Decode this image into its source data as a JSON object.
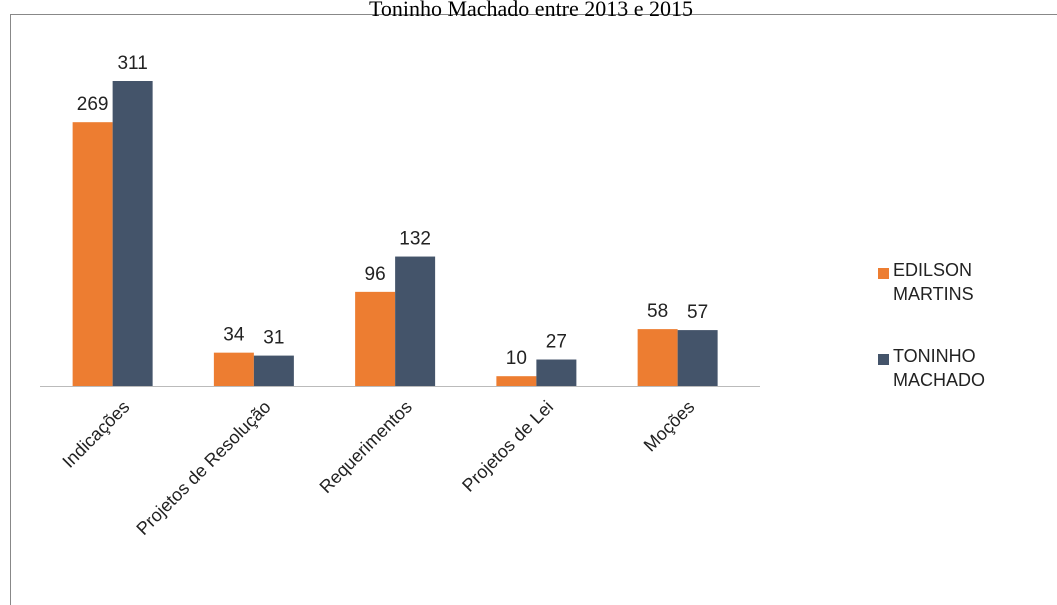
{
  "chart_data": {
    "type": "bar",
    "title": "Toninho Machado entre 2013 e 2015",
    "categories": [
      "Indicações",
      "Projetos de Resolução",
      "Requerimentos",
      "Projetos de Lei",
      "Moções"
    ],
    "series": [
      {
        "name": "EDILSON MARTINS",
        "color": "#ED7D31",
        "values": [
          269,
          34,
          96,
          10,
          58
        ]
      },
      {
        "name": "TONINHO MACHADO",
        "color": "#44546A",
        "values": [
          311,
          31,
          132,
          27,
          57
        ]
      }
    ]
  }
}
